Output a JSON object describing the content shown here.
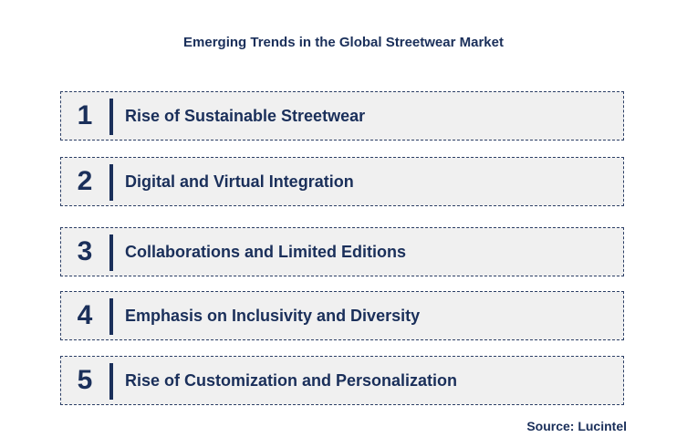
{
  "title": "Emerging Trends in the Global Streetwear Market",
  "trends": [
    {
      "number": "1",
      "label": "Rise of Sustainable Streetwear"
    },
    {
      "number": "2",
      "label": "Digital and Virtual Integration"
    },
    {
      "number": "3",
      "label": "Collaborations and Limited Editions"
    },
    {
      "number": "4",
      "label": "Emphasis on Inclusivity and Diversity"
    },
    {
      "number": "5",
      "label": "Rise of Customization and Personalization"
    }
  ],
  "source": "Source: Lucintel",
  "colors": {
    "text": "#1a2f5a",
    "box_fill": "#f0f0f0",
    "border": "#2c3f66"
  }
}
